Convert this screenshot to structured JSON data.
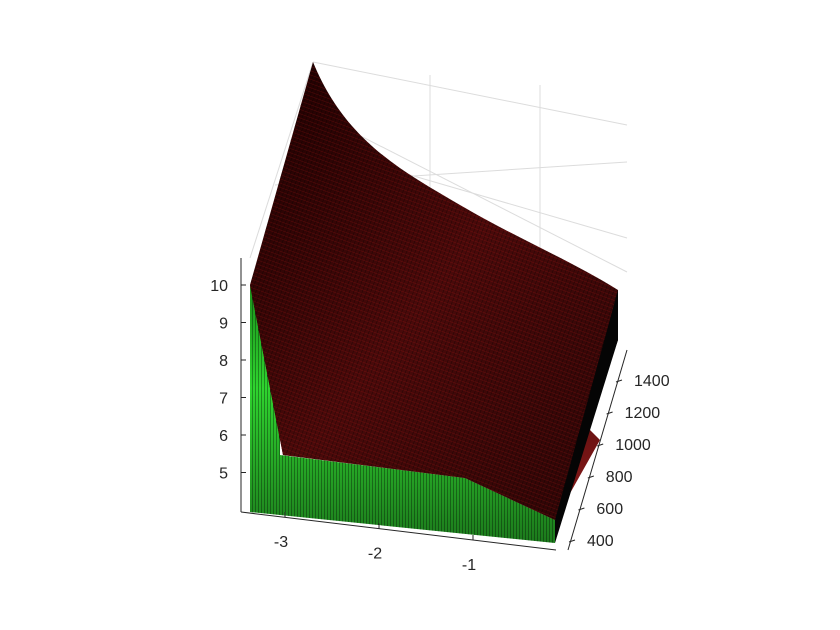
{
  "chart_data": {
    "type": "surface3d",
    "x": {
      "ticks": [
        -3,
        -2,
        -1
      ],
      "tick_labels": [
        "-3",
        "-2",
        "-1"
      ],
      "range": [
        -3.5,
        -0.7
      ]
    },
    "y": {
      "ticks": [
        400,
        600,
        800,
        1000,
        1200,
        1400
      ],
      "tick_labels": [
        "400",
        "600",
        "800",
        "1000",
        "1200",
        "1400"
      ],
      "range": [
        300,
        1500
      ]
    },
    "z": {
      "ticks": [
        5,
        6,
        7,
        8,
        9,
        10
      ],
      "tick_labels": [
        "5",
        "6",
        "7",
        "8",
        "9",
        "10"
      ],
      "range": [
        4.2,
        10.7
      ]
    },
    "grid": true,
    "colormap": {
      "low": "#33e633",
      "high": "#cc1010",
      "shade": "#000000"
    },
    "surface": {
      "description_points": [
        {
          "x": -3.5,
          "y": 300,
          "z": 10.0
        },
        {
          "x": -3.5,
          "y": 1500,
          "z": 14.2
        },
        {
          "x": -0.7,
          "y": 300,
          "z": 5.0
        },
        {
          "x": -0.7,
          "y": 1500,
          "z": 9.9
        },
        {
          "x": -3.2,
          "y": 300,
          "z": 5.5
        },
        {
          "x": -1.0,
          "y": 300,
          "z": 5.2
        }
      ]
    }
  }
}
